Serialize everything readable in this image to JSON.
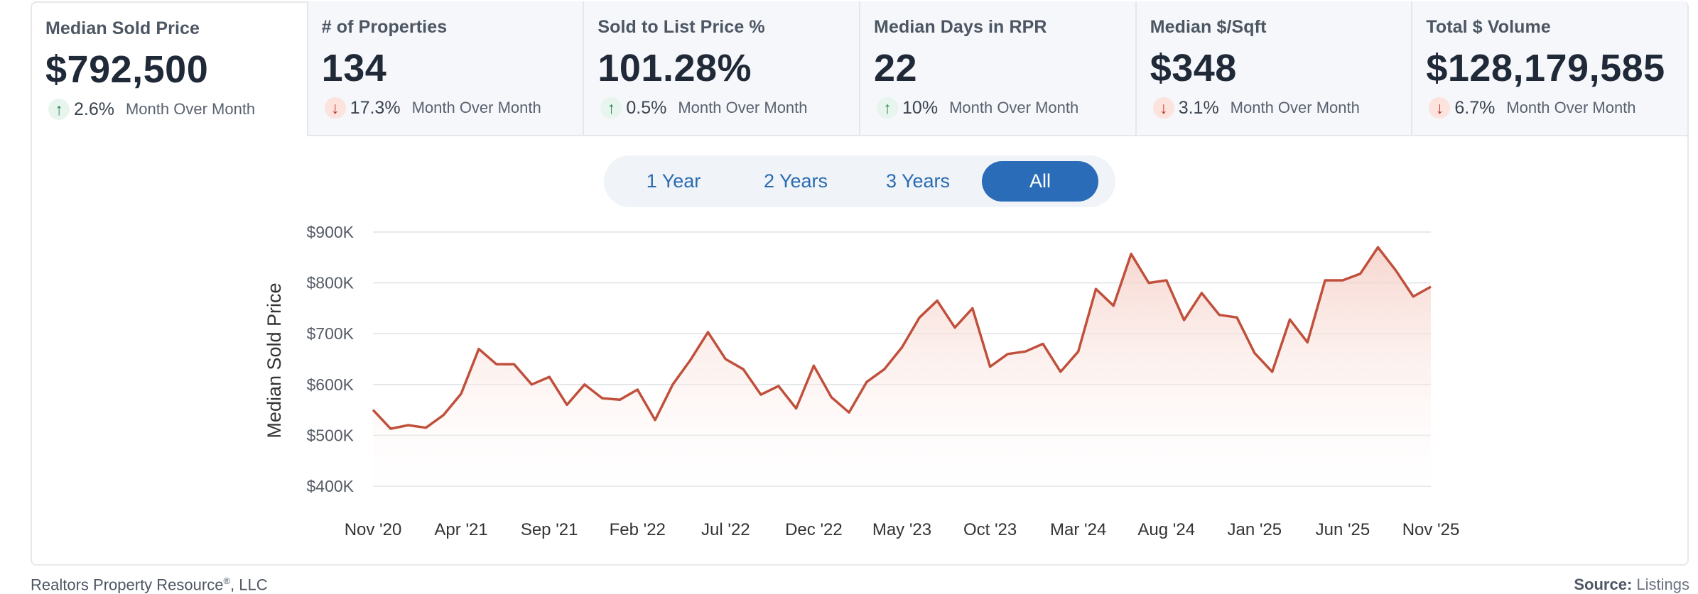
{
  "cards": [
    {
      "title": "Median Sold Price",
      "value": "$792,500",
      "direction": "up",
      "icon": "arrow-up-icon",
      "change": "2.6%",
      "label": "Month Over Month"
    },
    {
      "title": "# of Properties",
      "value": "134",
      "direction": "down",
      "icon": "arrow-down-icon",
      "change": "17.3%",
      "label": "Month Over Month"
    },
    {
      "title": "Sold to List Price %",
      "value": "101.28%",
      "direction": "up",
      "icon": "arrow-up-icon",
      "change": "0.5%",
      "label": "Month Over Month"
    },
    {
      "title": "Median Days in RPR",
      "value": "22",
      "direction": "up",
      "icon": "arrow-up-icon",
      "change": "10%",
      "label": "Month Over Month"
    },
    {
      "title": "Median $/Sqft",
      "value": "$348",
      "direction": "down",
      "icon": "arrow-down-icon",
      "change": "3.1%",
      "label": "Month Over Month"
    },
    {
      "title": "Total $ Volume",
      "value": "$128,179,585",
      "direction": "down",
      "icon": "arrow-down-icon",
      "change": "6.7%",
      "label": "Month Over Month"
    }
  ],
  "range_buttons": [
    {
      "label": "1 Year",
      "active": false
    },
    {
      "label": "2 Years",
      "active": false
    },
    {
      "label": "3 Years",
      "active": false
    },
    {
      "label": "All",
      "active": true
    }
  ],
  "footer": {
    "company": "Realtors Property Resource",
    "reg_mark": "®",
    "company_suffix": ", LLC",
    "source_label": "Source:",
    "source_value": "Listings"
  },
  "colors": {
    "line": "#c0503b",
    "area_top": "#f4c9bf",
    "accent": "#2b6cb8",
    "up": "#2e8b57",
    "down": "#c0392b"
  },
  "chart_data": {
    "type": "area",
    "ylabel": "Median Sold Price",
    "xlabel": "",
    "ylim": [
      400000,
      900000
    ],
    "yticks": [
      400000,
      500000,
      600000,
      700000,
      800000,
      900000
    ],
    "ytick_labels": [
      "$400K",
      "$500K",
      "$600K",
      "$700K",
      "$800K",
      "$900K"
    ],
    "xtick_labels": [
      "Nov '20",
      "Apr '21",
      "Sep '21",
      "Feb '22",
      "Jul '22",
      "Dec '22",
      "May '23",
      "Oct '23",
      "Mar '24",
      "Aug '24",
      "Jan '25",
      "Jun '25",
      "Nov '25"
    ],
    "grid": true,
    "series": [
      {
        "values": [
          550000,
          513000,
          520000,
          515000,
          540000,
          582000,
          670000,
          640000,
          640000,
          600000,
          615000,
          560000,
          600000,
          573000,
          570000,
          590000,
          530000,
          600000,
          648000,
          703000,
          650000,
          630000,
          580000,
          597000,
          553000,
          637000,
          575000,
          545000,
          605000,
          630000,
          673000,
          732000,
          765000,
          712000,
          750000,
          635000,
          660000,
          665000,
          680000,
          625000,
          665000,
          788000,
          755000,
          857000,
          800000,
          805000,
          727000,
          780000,
          737000,
          732000,
          662000,
          625000,
          728000,
          683000,
          805000,
          805000,
          818000,
          870000,
          825000,
          773000,
          792500
        ]
      }
    ]
  }
}
